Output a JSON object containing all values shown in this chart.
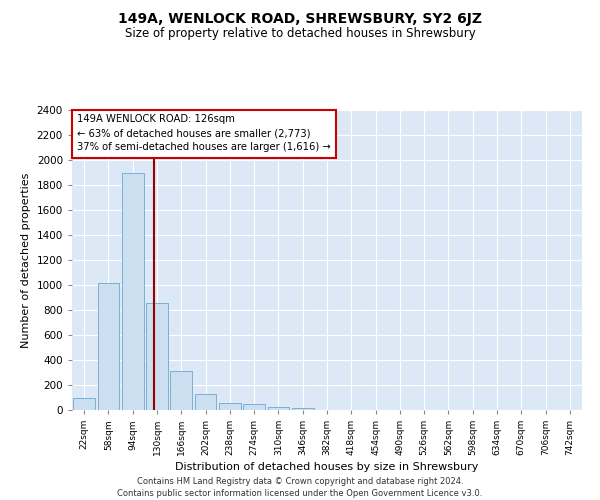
{
  "title": "149A, WENLOCK ROAD, SHREWSBURY, SY2 6JZ",
  "subtitle": "Size of property relative to detached houses in Shrewsbury",
  "xlabel": "Distribution of detached houses by size in Shrewsbury",
  "ylabel": "Number of detached properties",
  "bin_labels": [
    "22sqm",
    "58sqm",
    "94sqm",
    "130sqm",
    "166sqm",
    "202sqm",
    "238sqm",
    "274sqm",
    "310sqm",
    "346sqm",
    "382sqm",
    "418sqm",
    "454sqm",
    "490sqm",
    "526sqm",
    "562sqm",
    "598sqm",
    "634sqm",
    "670sqm",
    "706sqm",
    "742sqm"
  ],
  "bar_values": [
    100,
    1020,
    1900,
    855,
    315,
    125,
    58,
    50,
    27,
    15,
    0,
    0,
    0,
    0,
    0,
    0,
    0,
    0,
    0,
    0,
    0
  ],
  "bar_color": "#ccdff0",
  "bar_edge_color": "#7ab0d4",
  "property_bin_index": 2.88,
  "vline_color": "#990000",
  "annotation_line1": "149A WENLOCK ROAD: 126sqm",
  "annotation_line2": "← 63% of detached houses are smaller (2,773)",
  "annotation_line3": "37% of semi-detached houses are larger (1,616) →",
  "annotation_box_color": "#ffffff",
  "annotation_box_edge_color": "#cc0000",
  "ylim": [
    0,
    2400
  ],
  "yticks": [
    0,
    200,
    400,
    600,
    800,
    1000,
    1200,
    1400,
    1600,
    1800,
    2000,
    2200,
    2400
  ],
  "bg_color": "#dce8f5",
  "grid_color": "#ffffff",
  "footer_line1": "Contains HM Land Registry data © Crown copyright and database right 2024.",
  "footer_line2": "Contains public sector information licensed under the Open Government Licence v3.0."
}
